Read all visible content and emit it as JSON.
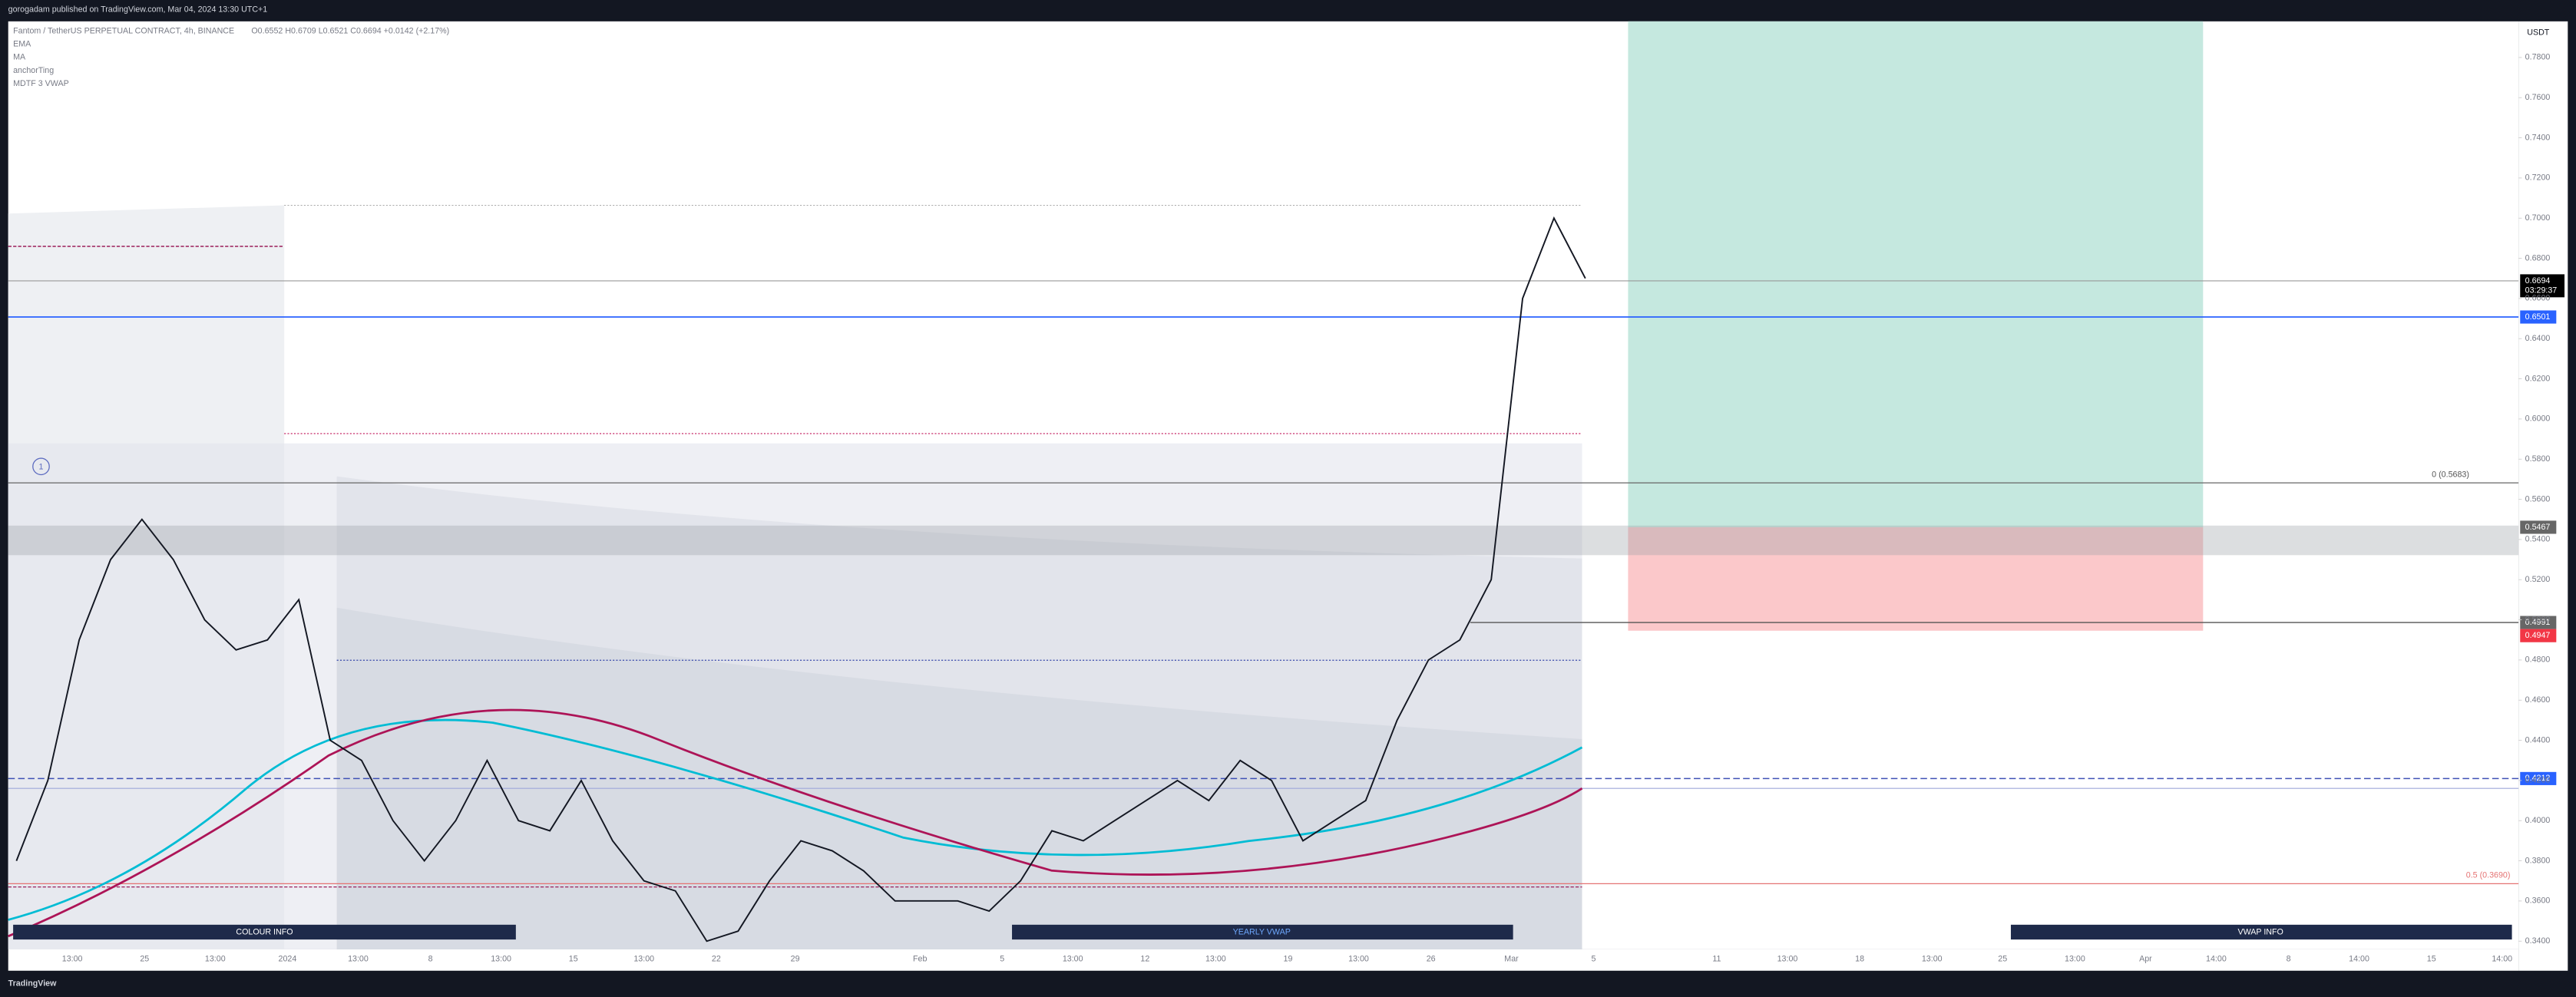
{
  "header": {
    "publisher": "gorogadam published on TradingView.com, Mar 04, 2024 13:30 UTC+1"
  },
  "legend": {
    "symbol": "Fantom / TetherUS PERPETUAL CONTRACT, 4h, BINANCE",
    "ohlc": "O0.6552 H0.6709 L0.6521 C0.6694 +0.0142 (+2.17%)",
    "indicators": [
      "EMA",
      "MA",
      "anchorTing",
      "MDTF 3 VWAP"
    ]
  },
  "currency": "USDT",
  "marker": "1",
  "price_axis": {
    "ylim": [
      0.34,
      0.78
    ],
    "ticks": [
      {
        "value": 0.34,
        "label": "0.3400"
      },
      {
        "value": 0.36,
        "label": "0.3600"
      },
      {
        "value": 0.38,
        "label": "0.3800"
      },
      {
        "value": 0.4,
        "label": "0.4000"
      },
      {
        "value": 0.42,
        "label": "0.4200"
      },
      {
        "value": 0.44,
        "label": "0.4400"
      },
      {
        "value": 0.46,
        "label": "0.4600"
      },
      {
        "value": 0.48,
        "label": "0.4800"
      },
      {
        "value": 0.5,
        "label": "0.5000"
      },
      {
        "value": 0.52,
        "label": "0.5200"
      },
      {
        "value": 0.54,
        "label": "0.5400"
      },
      {
        "value": 0.56,
        "label": "0.5600"
      },
      {
        "value": 0.58,
        "label": "0.5800"
      },
      {
        "value": 0.6,
        "label": "0.6000"
      },
      {
        "value": 0.62,
        "label": "0.6200"
      },
      {
        "value": 0.64,
        "label": "0.6400"
      },
      {
        "value": 0.66,
        "label": "0.6600"
      },
      {
        "value": 0.68,
        "label": "0.6800"
      },
      {
        "value": 0.7,
        "label": "0.7000"
      },
      {
        "value": 0.72,
        "label": "0.7200"
      },
      {
        "value": 0.74,
        "label": "0.7400"
      },
      {
        "value": 0.76,
        "label": "0.7600"
      },
      {
        "value": 0.78,
        "label": "0.7800"
      }
    ]
  },
  "time_axis": [
    "13:00",
    "25",
    "13:00",
    "2024",
    "13:00",
    "8",
    "13:00",
    "15",
    "13:00",
    "22",
    "29",
    "Feb",
    "5",
    "13:00",
    "12",
    "13:00",
    "19",
    "13:00",
    "26",
    "Mar",
    "5",
    "11",
    "13:00",
    "18",
    "13:00",
    "25",
    "13:00",
    "Apr",
    "14:00",
    "8",
    "14:00",
    "15",
    "14:00"
  ],
  "price_path": [
    0.38,
    0.42,
    0.49,
    0.53,
    0.55,
    0.53,
    0.5,
    0.485,
    0.49,
    0.51,
    0.44,
    0.43,
    0.4,
    0.38,
    0.4,
    0.43,
    0.4,
    0.395,
    0.42,
    0.39,
    0.37,
    0.365,
    0.34,
    0.345,
    0.37,
    0.39,
    0.385,
    0.375,
    0.36,
    0.36,
    0.36,
    0.355,
    0.37,
    0.395,
    0.39,
    0.4,
    0.41,
    0.42,
    0.41,
    0.43,
    0.42,
    0.39,
    0.4,
    0.41,
    0.45,
    0.48,
    0.49,
    0.52,
    0.66,
    0.7,
    0.67
  ],
  "badges": {
    "last": "0.6694",
    "countdown": "03:29:37",
    "blue_top": "0.6501",
    "gray_top": "0.5467",
    "gray_low": "0.4991",
    "red": "0.4947",
    "blue_low": "0.4212"
  },
  "fib": {
    "top": "0 (0.5683)",
    "mid": "0.5 (0.3690)"
  },
  "boxes": [
    "COLOUR INFO",
    "YEARLY VWAP",
    "VWAP INFO"
  ],
  "footer": {
    "brand": "TradingView"
  }
}
